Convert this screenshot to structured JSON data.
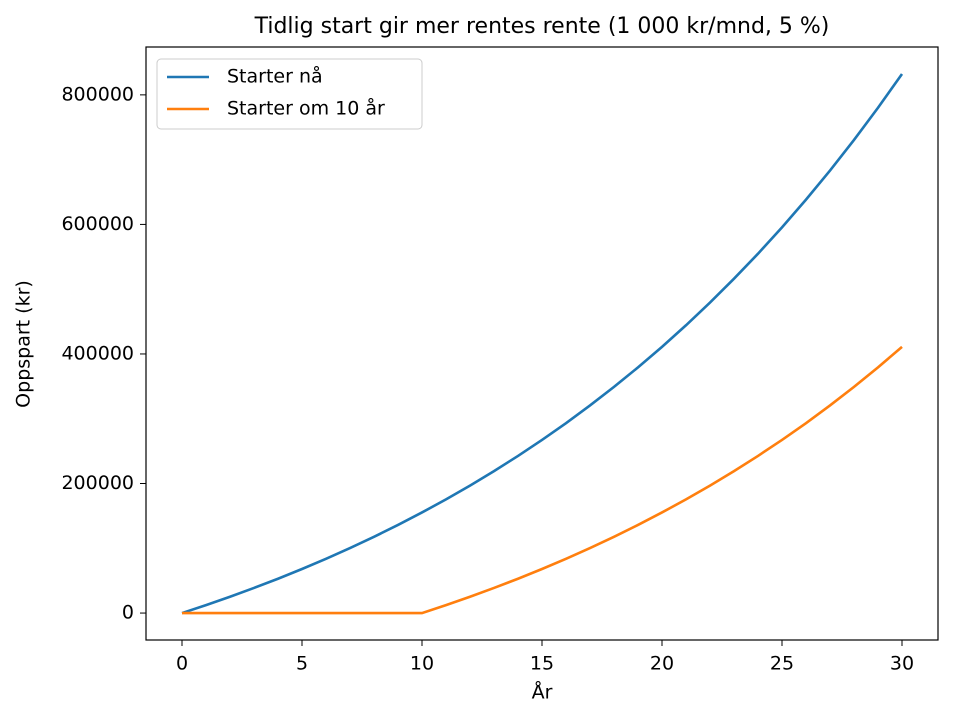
{
  "chart_data": {
    "type": "line",
    "title": "Tidlig start gir mer rentes rente (1 000 kr/mnd, 5 %)",
    "xlabel": "År",
    "ylabel": "Oppspart (kr)",
    "x": [
      0,
      1,
      2,
      3,
      4,
      5,
      6,
      7,
      8,
      9,
      10,
      11,
      12,
      13,
      14,
      15,
      16,
      17,
      18,
      19,
      20,
      21,
      22,
      23,
      24,
      25,
      26,
      27,
      28,
      29,
      30
    ],
    "series": [
      {
        "name": "Starter nå",
        "color": "#1f77b4",
        "values": [
          0,
          12300,
          25200,
          38800,
          53000,
          68000,
          83800,
          100300,
          117700,
          136000,
          155300,
          175500,
          196800,
          219100,
          242600,
          267300,
          293200,
          320500,
          349200,
          379300,
          411000,
          444300,
          479400,
          516200,
          554800,
          595500,
          638300,
          683200,
          730400,
          780100,
          832300
        ]
      },
      {
        "name": "Starter om 10 år",
        "color": "#ff7f0e",
        "values": [
          0,
          0,
          0,
          0,
          0,
          0,
          0,
          0,
          0,
          0,
          0,
          12300,
          25200,
          38800,
          53000,
          68000,
          83800,
          100300,
          117700,
          136000,
          155300,
          175500,
          196800,
          219100,
          242600,
          267300,
          293200,
          320500,
          349200,
          379300,
          411000
        ]
      }
    ],
    "xlim": [
      -1.5,
      31.5
    ],
    "xticks": [
      0,
      5,
      10,
      15,
      20,
      25,
      30
    ],
    "ylim": [
      -41600,
      873900
    ],
    "yticks": [
      0,
      200000,
      400000,
      600000,
      800000
    ],
    "legend": "upper left",
    "grid": false
  }
}
